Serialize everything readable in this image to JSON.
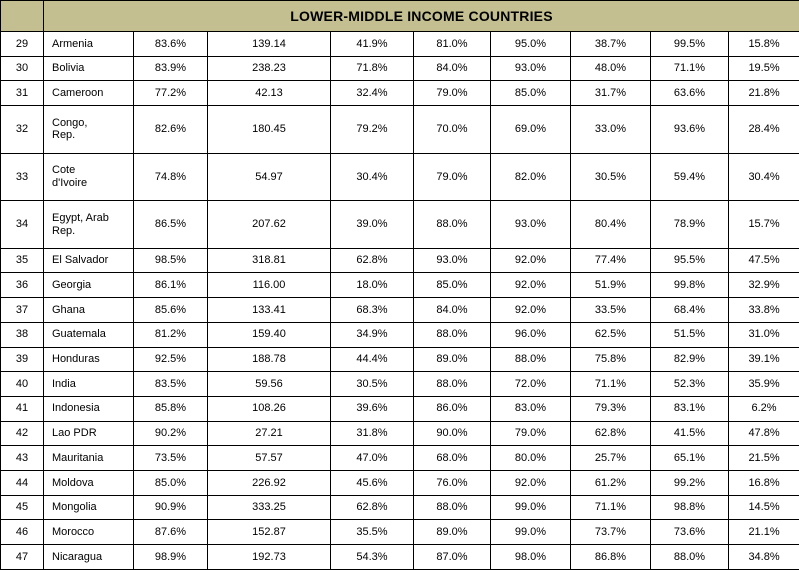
{
  "header": {
    "title": "LOWER-MIDDLE INCOME COUNTRIES"
  },
  "colors": {
    "header_bg": "#c3bf90",
    "border": "#000000",
    "row_bg": "#ffffff",
    "text": "#000000"
  },
  "table": {
    "rows": [
      {
        "num": "29",
        "country": "Armenia",
        "values": [
          "83.6%",
          "139.14",
          "41.9%",
          "81.0%",
          "95.0%",
          "38.7%",
          "99.5%",
          "15.8%"
        ]
      },
      {
        "num": "30",
        "country": "Bolivia",
        "values": [
          "83.9%",
          "238.23",
          "71.8%",
          "84.0%",
          "93.0%",
          "48.0%",
          "71.1%",
          "19.5%"
        ]
      },
      {
        "num": "31",
        "country": "Cameroon",
        "values": [
          "77.2%",
          "42.13",
          "32.4%",
          "79.0%",
          "85.0%",
          "31.7%",
          "63.6%",
          "21.8%"
        ]
      },
      {
        "num": "32",
        "country": "Congo,\nRep.",
        "values": [
          "82.6%",
          "180.45",
          "79.2%",
          "70.0%",
          "69.0%",
          "33.0%",
          "93.6%",
          "28.4%"
        ]
      },
      {
        "num": "33",
        "country": "Cote\nd'Ivoire",
        "values": [
          "74.8%",
          "54.97",
          "30.4%",
          "79.0%",
          "82.0%",
          "30.5%",
          "59.4%",
          "30.4%"
        ]
      },
      {
        "num": "34",
        "country": "Egypt, Arab\nRep.",
        "values": [
          "86.5%",
          "207.62",
          "39.0%",
          "88.0%",
          "93.0%",
          "80.4%",
          "78.9%",
          "15.7%"
        ]
      },
      {
        "num": "35",
        "country": "El Salvador",
        "values": [
          "98.5%",
          "318.81",
          "62.8%",
          "93.0%",
          "92.0%",
          "77.4%",
          "95.5%",
          "47.5%"
        ]
      },
      {
        "num": "36",
        "country": "Georgia",
        "values": [
          "86.1%",
          "116.00",
          "18.0%",
          "85.0%",
          "92.0%",
          "51.9%",
          "99.8%",
          "32.9%"
        ]
      },
      {
        "num": "37",
        "country": "Ghana",
        "values": [
          "85.6%",
          "133.41",
          "68.3%",
          "84.0%",
          "92.0%",
          "33.5%",
          "68.4%",
          "33.8%"
        ]
      },
      {
        "num": "38",
        "country": "Guatemala",
        "values": [
          "81.2%",
          "159.40",
          "34.9%",
          "88.0%",
          "96.0%",
          "62.5%",
          "51.5%",
          "31.0%"
        ]
      },
      {
        "num": "39",
        "country": "Honduras",
        "values": [
          "92.5%",
          "188.78",
          "44.4%",
          "89.0%",
          "88.0%",
          "75.8%",
          "82.9%",
          "39.1%"
        ]
      },
      {
        "num": "40",
        "country": "India",
        "values": [
          "83.5%",
          "59.56",
          "30.5%",
          "88.0%",
          "72.0%",
          "71.1%",
          "52.3%",
          "35.9%"
        ]
      },
      {
        "num": "41",
        "country": "Indonesia",
        "values": [
          "85.8%",
          "108.26",
          "39.6%",
          "86.0%",
          "83.0%",
          "79.3%",
          "83.1%",
          "6.2%"
        ]
      },
      {
        "num": "42",
        "country": "Lao PDR",
        "values": [
          "90.2%",
          "27.21",
          "31.8%",
          "90.0%",
          "79.0%",
          "62.8%",
          "41.5%",
          "47.8%"
        ]
      },
      {
        "num": "43",
        "country": "Mauritania",
        "values": [
          "73.5%",
          "57.57",
          "47.0%",
          "68.0%",
          "80.0%",
          "25.7%",
          "65.1%",
          "21.5%"
        ]
      },
      {
        "num": "44",
        "country": "Moldova",
        "values": [
          "85.0%",
          "226.92",
          "45.6%",
          "76.0%",
          "92.0%",
          "61.2%",
          "99.2%",
          "16.8%"
        ]
      },
      {
        "num": "45",
        "country": "Mongolia",
        "values": [
          "90.9%",
          "333.25",
          "62.8%",
          "88.0%",
          "99.0%",
          "71.1%",
          "98.8%",
          "14.5%"
        ]
      },
      {
        "num": "46",
        "country": "Morocco",
        "values": [
          "87.6%",
          "152.87",
          "35.5%",
          "89.0%",
          "99.0%",
          "73.7%",
          "73.6%",
          "21.1%"
        ]
      },
      {
        "num": "47",
        "country": "Nicaragua",
        "values": [
          "98.9%",
          "192.73",
          "54.3%",
          "87.0%",
          "98.0%",
          "86.8%",
          "88.0%",
          "34.8%"
        ]
      }
    ]
  }
}
